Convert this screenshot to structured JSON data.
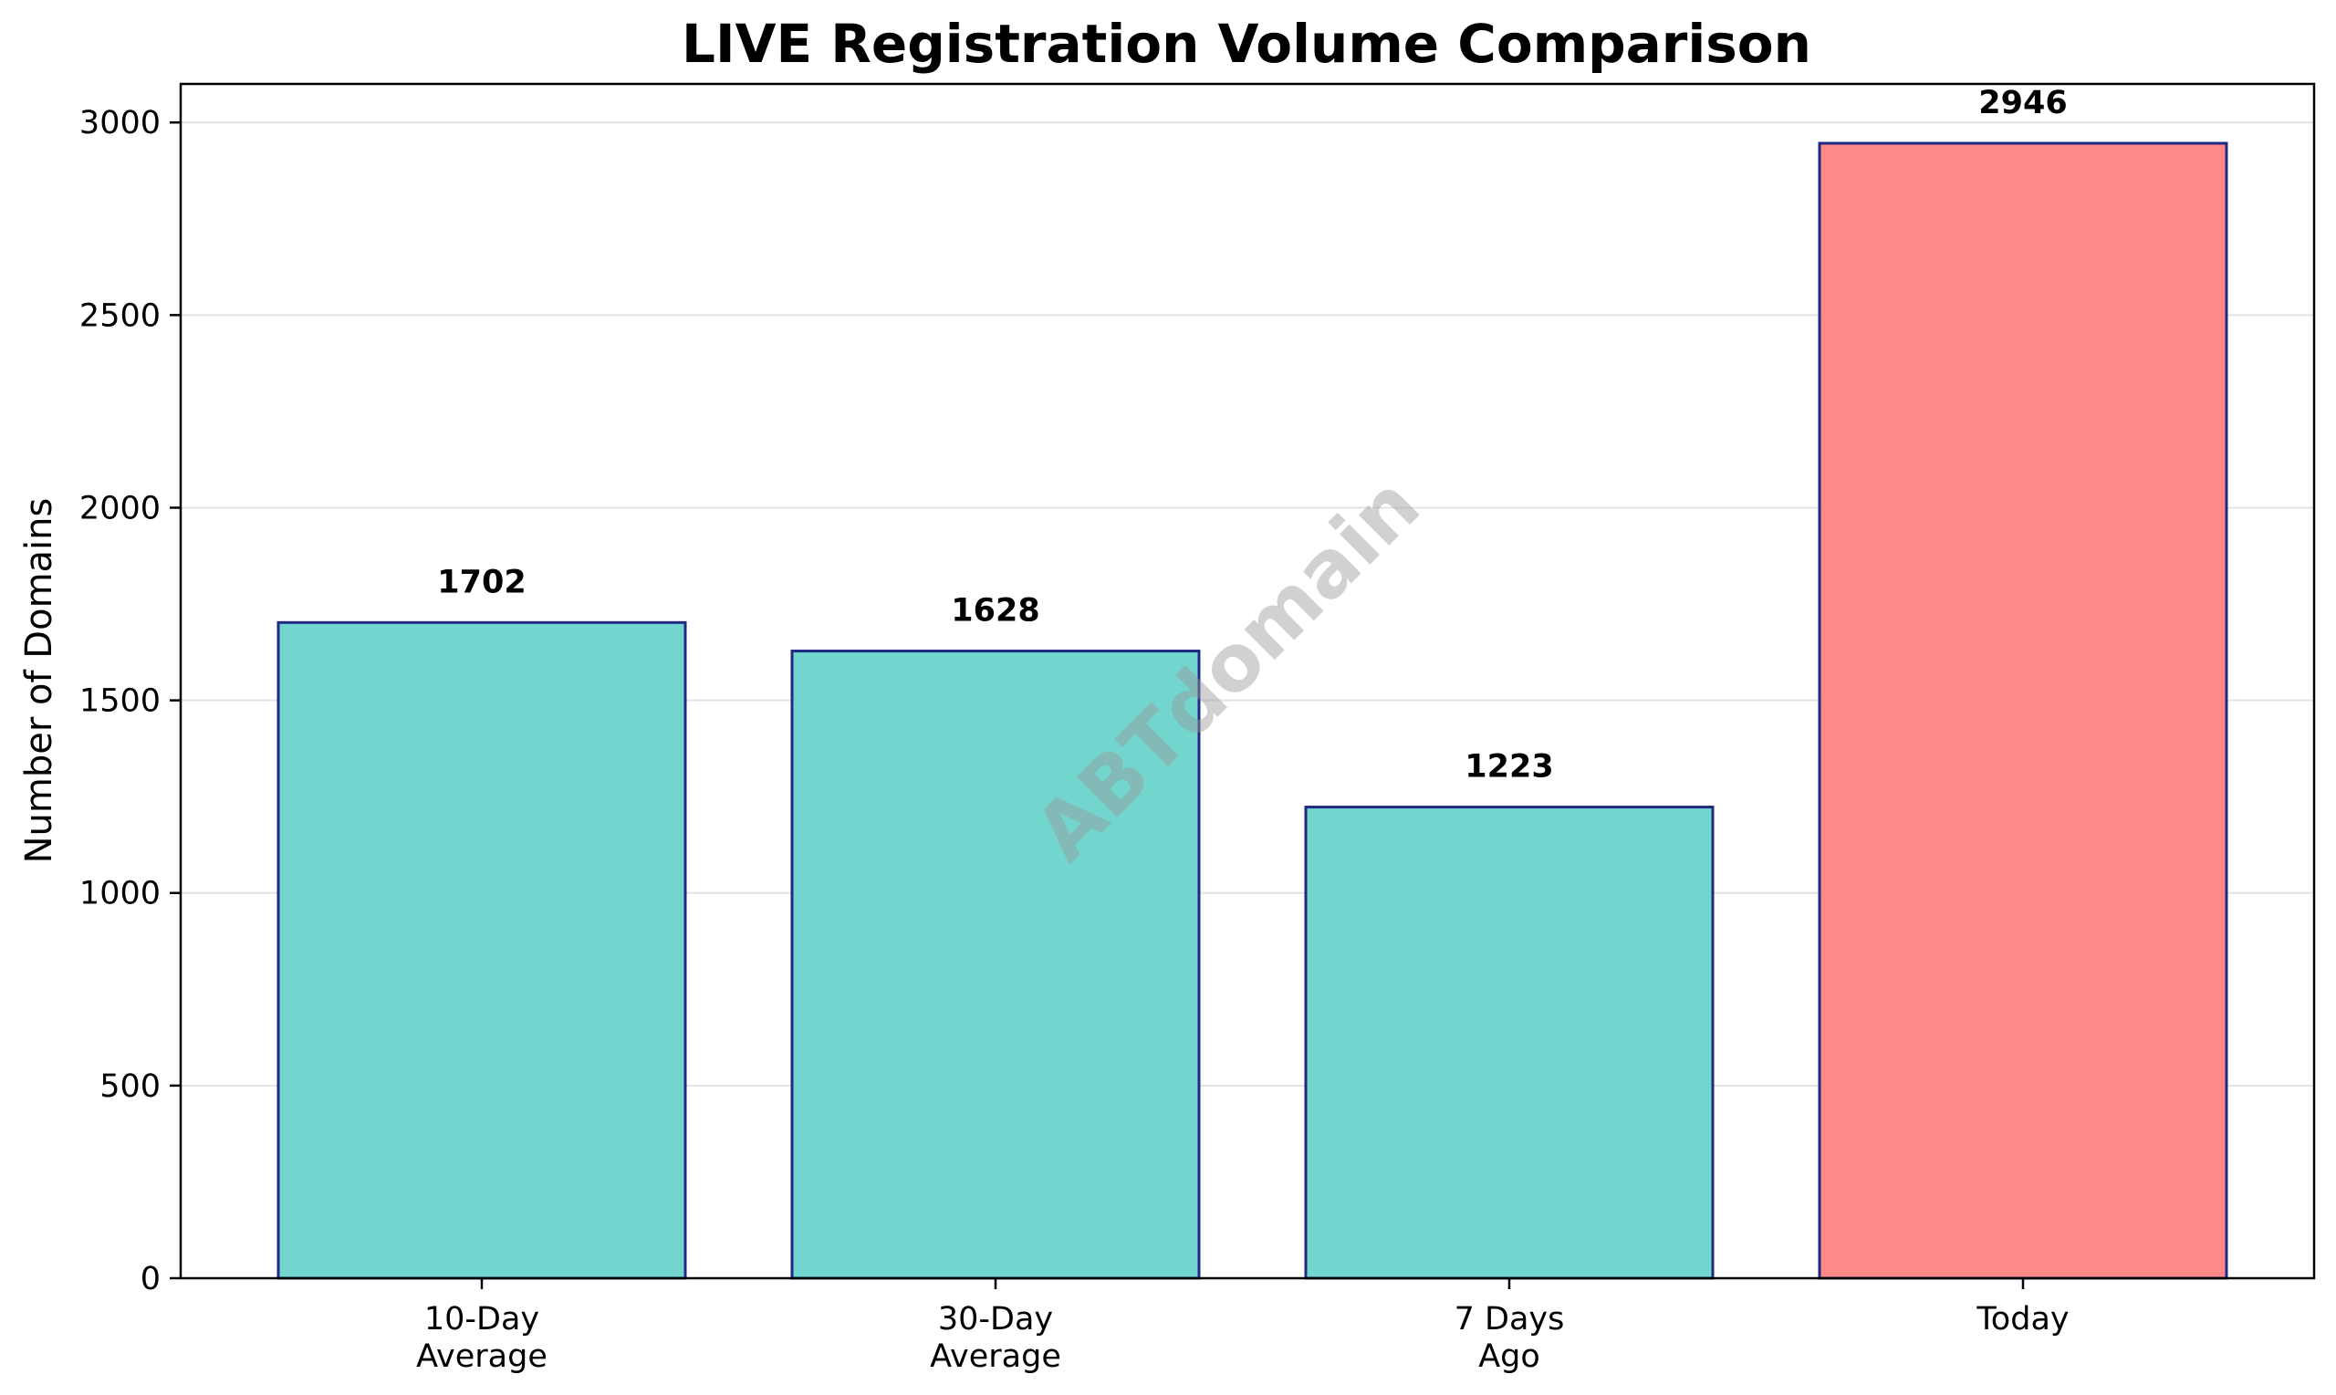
{
  "chart_data": {
    "type": "bar",
    "title": "LIVE Registration Volume Comparison",
    "xlabel": "",
    "ylabel": "Number of Domains",
    "categories": [
      [
        "10-Day",
        "Average"
      ],
      [
        "30-Day",
        "Average"
      ],
      [
        "7 Days",
        "Ago"
      ],
      [
        "Today"
      ]
    ],
    "values": [
      1702,
      1628,
      1223,
      2946
    ],
    "data_labels": [
      "1702",
      "1628",
      "1223",
      "2946"
    ],
    "bar_colors": [
      "#72d6cf",
      "#72d6cf",
      "#72d6cf",
      "#ff8888"
    ],
    "bar_edge_color": "#1f2a80",
    "ylim": [
      0,
      3100
    ],
    "yticks": [
      0,
      500,
      1000,
      1500,
      2000,
      2500,
      3000
    ],
    "grid": "horizontal",
    "legend": "none",
    "watermark": "ABTdomain"
  }
}
